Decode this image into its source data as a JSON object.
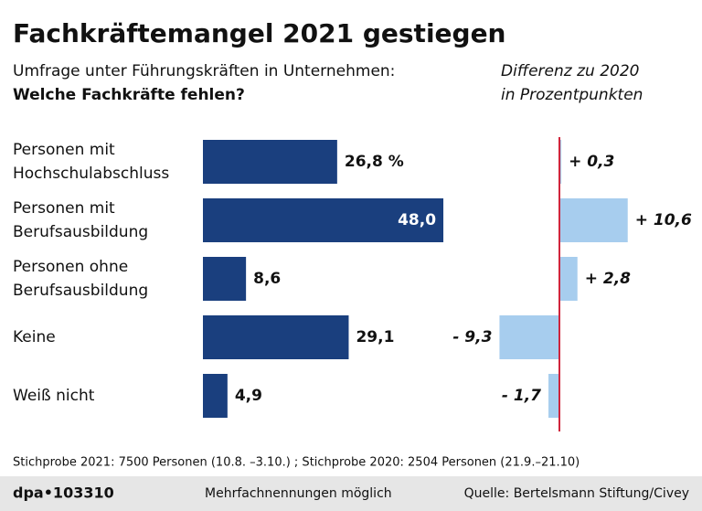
{
  "title": "Fachkräftemangel 2021 gestiegen",
  "subtitle": [
    "Umfrage unter Führungskräften in Unternehmen:",
    "Welche Fachkräfte fehlen?"
  ],
  "chart_data": [
    {
      "type": "bar",
      "orientation": "horizontal",
      "categories": [
        "Personen mit\nHochschulabschluss",
        "Personen mit\nBerufsausbildung",
        "Personen ohne\nBerufsausbildung",
        "Keine",
        "Weiß nicht"
      ],
      "values": [
        26.8,
        48.0,
        8.6,
        29.1,
        4.9
      ],
      "value_labels": [
        "26,8 %",
        "48,0",
        "8,6",
        "29,1",
        "4,9"
      ],
      "color": "#1a3f7e"
    },
    {
      "type": "bar",
      "orientation": "horizontal",
      "title": [
        "Differenz zu 2020",
        "in Prozentpunkten"
      ],
      "values": [
        0.3,
        10.6,
        2.8,
        -9.3,
        -1.7
      ],
      "value_labels": [
        "+ 0,3",
        "+ 10,6",
        "+ 2,8",
        "- 9,3",
        "- 1,7"
      ],
      "color": "#a7cdee",
      "zero_line_color": "#d0253c"
    }
  ],
  "note": "Stichprobe 2021: 7500 Personen (10.8. –3.10.) ; Stichprobe 2020: 2504 Personen (21.9.–21.10)",
  "footer": {
    "agency": "dpa•103310",
    "remark": "Mehrfachnennungen möglich",
    "source": "Quelle: Bertelsmann Stiftung/Civey"
  }
}
